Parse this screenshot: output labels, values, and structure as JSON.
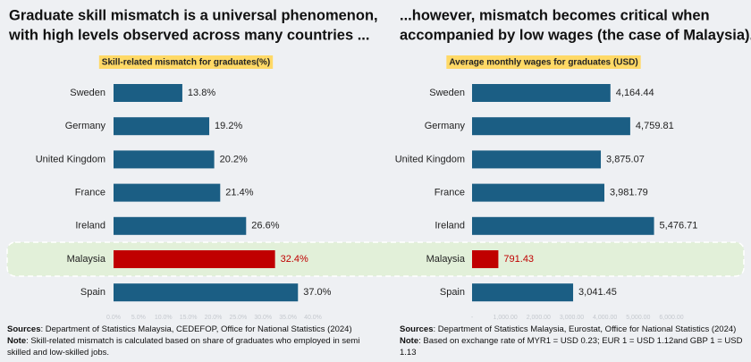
{
  "chart_data": [
    {
      "type": "barh",
      "title": [
        "Graduate skill mismatch is a universal phenomenon,",
        "with high levels observed across many countries ..."
      ],
      "subtitle": "Skill-related mismatch for graduates(%)",
      "categories": [
        "Sweden",
        "Germany",
        "United Kingdom",
        "France",
        "Ireland",
        "Malaysia",
        "Spain"
      ],
      "values": [
        13.8,
        19.2,
        20.2,
        21.4,
        26.6,
        32.4,
        37.0
      ],
      "value_labels": [
        "13.8%",
        "19.2%",
        "20.2%",
        "21.4%",
        "26.6%",
        "32.4%",
        "37.0%"
      ],
      "colors": [
        "#1b5e84",
        "#1b5e84",
        "#1b5e84",
        "#1b5e84",
        "#1b5e84",
        "#c00000",
        "#1b5e84"
      ],
      "label_colors": [
        "#222222",
        "#222222",
        "#222222",
        "#222222",
        "#222222",
        "#c00000",
        "#222222"
      ],
      "xlim": [
        0,
        40
      ],
      "xticks": [
        {
          "value": 0,
          "label": "0.0%"
        },
        {
          "value": 5,
          "label": "5.0%"
        },
        {
          "value": 10,
          "label": "10.0%"
        },
        {
          "value": 15,
          "label": "15.0%"
        },
        {
          "value": 20,
          "label": "20.0%"
        },
        {
          "value": 25,
          "label": "25.0%"
        },
        {
          "value": 30,
          "label": "30.0%"
        },
        {
          "value": 35,
          "label": "35.0%"
        },
        {
          "value": 40,
          "label": "40.0%"
        }
      ],
      "sources_label": "Sources",
      "sources": ": Department of Statistics Malaysia, CEDEFOP, Office for National Statistics (2024)",
      "note_label": "Note",
      "note": [
        ": Skill-related mismatch is calculated based on share of graduates who employed in semi",
        "skilled and low-skilled jobs."
      ]
    },
    {
      "type": "barh",
      "title": [
        "...however, mismatch becomes critical when",
        "accompanied by low wages (the case of Malaysia)."
      ],
      "subtitle": "Average monthly wages for graduates (USD)",
      "categories": [
        "Sweden",
        "Germany",
        "United Kingdom",
        "France",
        "Ireland",
        "Malaysia",
        "Spain"
      ],
      "values": [
        4164.44,
        4759.81,
        3875.07,
        3981.79,
        5476.71,
        791.43,
        3041.45
      ],
      "value_labels": [
        "4,164.44",
        "4,759.81",
        "3,875.07",
        "3,981.79",
        "5,476.71",
        "791.43",
        "3,041.45"
      ],
      "colors": [
        "#1b5e84",
        "#1b5e84",
        "#1b5e84",
        "#1b5e84",
        "#1b5e84",
        "#c00000",
        "#1b5e84"
      ],
      "label_colors": [
        "#222222",
        "#222222",
        "#222222",
        "#222222",
        "#222222",
        "#c00000",
        "#222222"
      ],
      "xlim": [
        0,
        6000
      ],
      "xticks": [
        {
          "value": 0,
          "label": "-"
        },
        {
          "value": 1000,
          "label": "1,000.00"
        },
        {
          "value": 2000,
          "label": "2,000.00"
        },
        {
          "value": 3000,
          "label": "3,000.00"
        },
        {
          "value": 4000,
          "label": "4,000.00"
        },
        {
          "value": 5000,
          "label": "5,000.00"
        },
        {
          "value": 6000,
          "label": "6,000.00"
        }
      ],
      "sources_label": "Sources",
      "sources": ": Department of Statistics Malaysia, Eurostat, Office for National Statistics (2024)",
      "note_label": "Note",
      "note": [
        ": Based on exchange rate of MYR1 = USD 0.23; EUR 1 = USD 1.12and GBP 1 = USD 1.13"
      ]
    }
  ]
}
